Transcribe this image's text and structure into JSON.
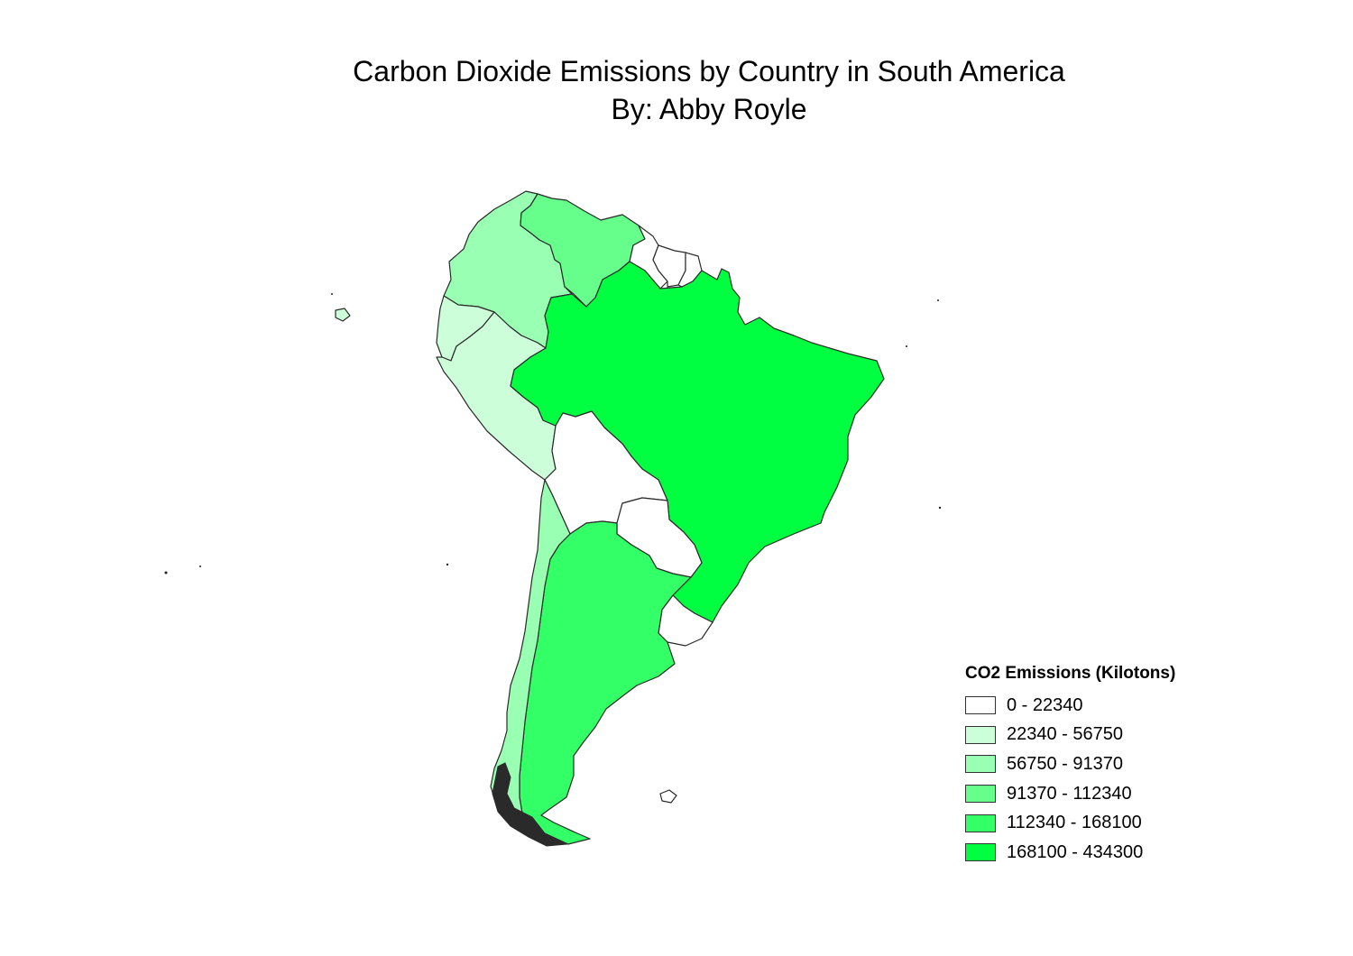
{
  "title": {
    "line1": "Carbon Dioxide Emissions by Country in South America",
    "line2": "By: Abby Royle"
  },
  "legend": {
    "title": "CO2 Emissions (Kilotons)",
    "classes": [
      {
        "label": "0 - 22340",
        "color": "#ffffff"
      },
      {
        "label": "22340 - 56750",
        "color": "#ccffd9"
      },
      {
        "label": "56750 - 91370",
        "color": "#99ffb3"
      },
      {
        "label": "91370 - 112340",
        "color": "#66ff8c"
      },
      {
        "label": "112340 - 168100",
        "color": "#33ff66"
      },
      {
        "label": "168100 - 434300",
        "color": "#00ff40"
      }
    ]
  },
  "map": {
    "countries": [
      {
        "name": "Brazil",
        "class": 5
      },
      {
        "name": "Argentina",
        "class": 4
      },
      {
        "name": "Venezuela",
        "class": 3
      },
      {
        "name": "Colombia",
        "class": 2
      },
      {
        "name": "Chile",
        "class": 2
      },
      {
        "name": "Peru",
        "class": 1
      },
      {
        "name": "Ecuador",
        "class": 1
      },
      {
        "name": "Bolivia",
        "class": 0
      },
      {
        "name": "Paraguay",
        "class": 0
      },
      {
        "name": "Uruguay",
        "class": 0
      },
      {
        "name": "Guyana",
        "class": 0
      },
      {
        "name": "Suriname",
        "class": 0
      },
      {
        "name": "French Guiana",
        "class": 0
      },
      {
        "name": "Falkland Islands",
        "class": 0
      }
    ]
  }
}
